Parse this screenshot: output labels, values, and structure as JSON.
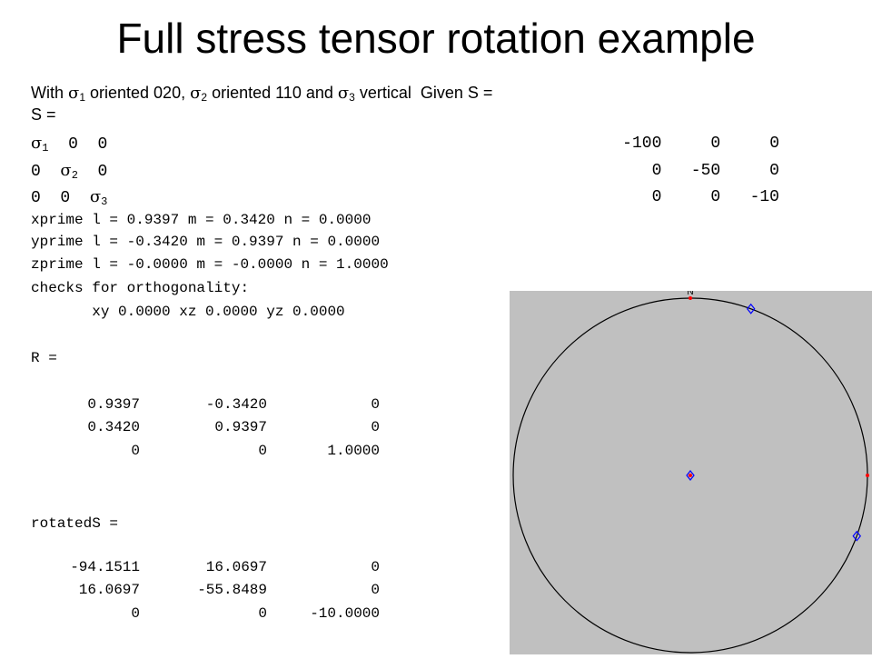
{
  "title": "Full stress tensor rotation example",
  "intro": {
    "with": "With",
    "sigma": "σ",
    "s1_sub": "1",
    "s1_text": " oriented 020, ",
    "s2_sub": "2",
    "s2_text": " oriented 110 and ",
    "s3_sub": "3",
    "s3_text": " vertical  Given S ="
  },
  "s_label": "S =",
  "symbolic_rows": [
    {
      "a": "σ",
      "a_sub": "1",
      "rest": "  0  0"
    },
    {
      "pre": "0  ",
      "a": "σ",
      "a_sub": "2",
      "rest": "  0"
    },
    {
      "pre": "0  0  ",
      "a": "σ",
      "a_sub": "3",
      "rest": ""
    }
  ],
  "given_rows": [
    "-100     0     0",
    "0   -50     0",
    "0     0   -10"
  ],
  "output_lines": [
    "xprime l = 0.9397 m = 0.3420 n = 0.0000",
    "yprime l = -0.3420 m = 0.9397 n = 0.0000",
    "zprime l = -0.0000 m = -0.0000 n = 1.0000",
    "checks for orthogonality:",
    "       xy 0.0000 xz 0.0000 yz 0.0000"
  ],
  "r_label": "R =",
  "r_rows": [
    [
      "0.9397",
      "-0.3420",
      "0"
    ],
    [
      "0.3420",
      "0.9397",
      "0"
    ],
    [
      "0",
      "0",
      "1.0000"
    ]
  ],
  "rotated_label": "rotatedS =",
  "rotated_rows": [
    [
      "-94.1511",
      "16.0697",
      "0"
    ],
    [
      "16.0697",
      "-55.8489",
      "0"
    ],
    [
      "0",
      "0",
      "-10.0000"
    ]
  ],
  "stereonet": {
    "north_label": "N",
    "background": "#c0c0c0",
    "pole_color": "#ff0000",
    "principal_color": "#0000ff",
    "principal_points": [
      {
        "name": "sigma1",
        "trend_deg": 20,
        "plunge_deg": 0
      },
      {
        "name": "sigma2",
        "trend_deg": 110,
        "plunge_deg": 0
      },
      {
        "name": "sigma3",
        "trend_deg": 0,
        "plunge_deg": 90
      }
    ],
    "pole_points": [
      {
        "name": "north",
        "trend_deg": 0,
        "plunge_deg": 0
      },
      {
        "name": "east",
        "trend_deg": 90,
        "plunge_deg": 0
      },
      {
        "name": "center",
        "trend_deg": 0,
        "plunge_deg": 90
      }
    ]
  }
}
